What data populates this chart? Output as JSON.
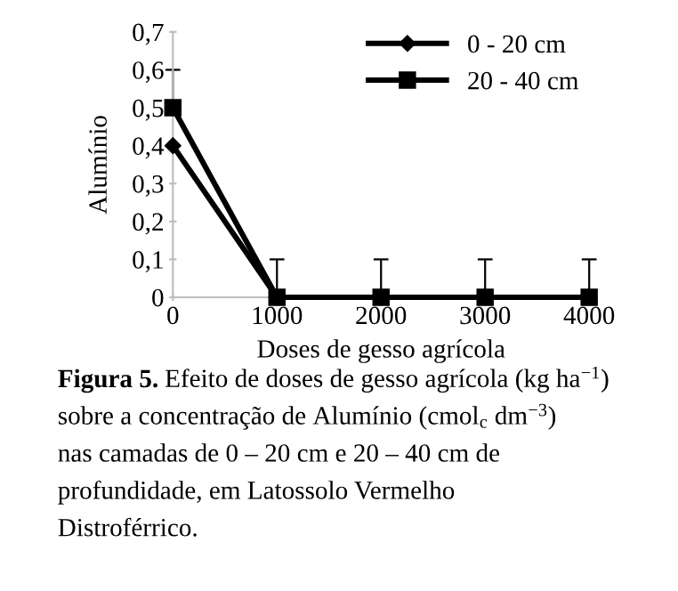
{
  "chart_data": {
    "type": "line",
    "xlabel": "Doses de gesso agrícola",
    "ylabel": "Alumínio",
    "x": [
      0,
      1000,
      2000,
      3000,
      4000
    ],
    "series": [
      {
        "name": "0 - 20 cm",
        "color": "#000000",
        "marker": "diamond",
        "values": [
          0.4,
          0,
          0,
          0,
          0
        ]
      },
      {
        "name": "20 - 40 cm",
        "color": "#000000",
        "marker": "square",
        "values": [
          0.5,
          0,
          0,
          0,
          0
        ],
        "errors": [
          [
            0.5,
            0.6
          ],
          [
            0,
            0.1
          ],
          [
            0,
            0.1
          ],
          [
            0,
            0.1
          ],
          [
            0,
            0.1
          ]
        ]
      }
    ],
    "xlim": [
      0,
      4000
    ],
    "xticks": [
      0,
      1000,
      2000,
      3000,
      4000
    ],
    "ylim": [
      0,
      0.7
    ],
    "yticks": [
      {
        "value": 0,
        "label": "0"
      },
      {
        "value": 0.1,
        "label": "0,1"
      },
      {
        "value": 0.2,
        "label": "0,2"
      },
      {
        "value": 0.3,
        "label": "0,3"
      },
      {
        "value": 0.4,
        "label": "0,4"
      },
      {
        "value": 0.5,
        "label": "0,5"
      },
      {
        "value": 0.6,
        "label": "0,6"
      },
      {
        "value": 0.7,
        "label": "0,7"
      }
    ],
    "grid": false,
    "legend": "top right",
    "line_style": "solid",
    "annotations": [
      "Figura 5.",
      "Efeito de doses de gesso agrícola (kg ha$^{−1}$)",
      "sobre a concentração de Alumínio (cmol$_{c}$ dm$^{−3}$)",
      "nas camadas de 0 – 20 cm e 20 – 40 cm de",
      "profundidade, em Latossolo Vermelho",
      "Distroférrico."
    ]
  }
}
